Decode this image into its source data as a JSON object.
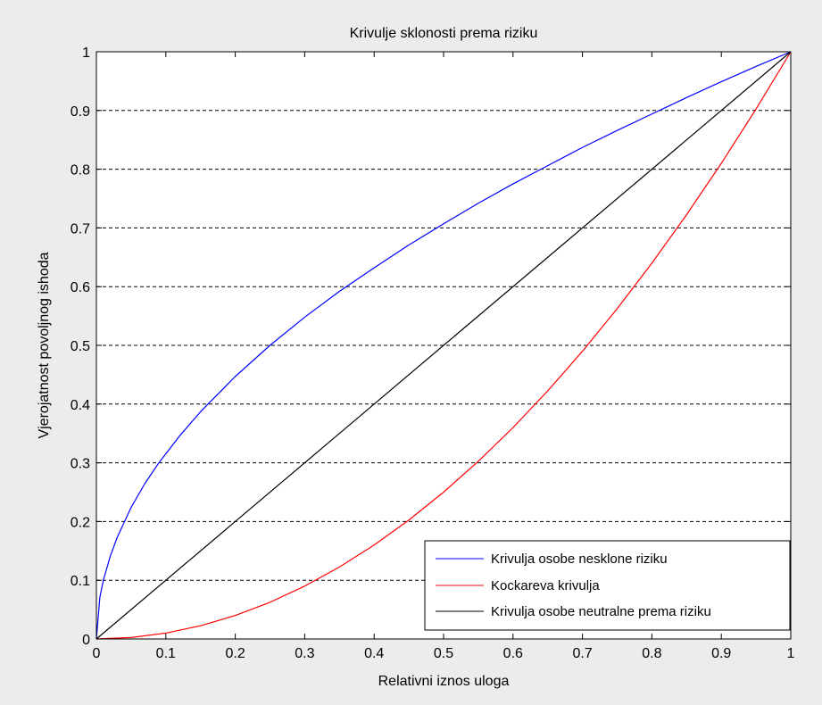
{
  "chart_data": {
    "type": "line",
    "title": "Krivulje sklonosti prema riziku",
    "xlabel": "Relativni iznos uloga",
    "ylabel": "Vjerojatnost povoljnog ishoda",
    "xlim": [
      0,
      1
    ],
    "ylim": [
      0,
      1
    ],
    "xticks": [
      0,
      0.1,
      0.2,
      0.3,
      0.4,
      0.5,
      0.6,
      0.7,
      0.8,
      0.9,
      1
    ],
    "xtick_labels": [
      "0",
      "0.1",
      "0.2",
      "0.3",
      "0.4",
      "0.5",
      "0.6",
      "0.7",
      "0.8",
      "0.9",
      "1"
    ],
    "yticks": [
      0,
      0.1,
      0.2,
      0.3,
      0.4,
      0.5,
      0.6,
      0.7,
      0.8,
      0.9,
      1
    ],
    "ytick_labels": [
      "0",
      "0.1",
      "0.2",
      "0.3",
      "0.4",
      "0.5",
      "0.6",
      "0.7",
      "0.8",
      "0.9",
      "1"
    ],
    "grid": "horizontal dashed",
    "legend_position": "bottom-right",
    "series": [
      {
        "name": "Krivulja osobe nesklone riziku",
        "color": "#0000ff",
        "x": [
          0,
          0.005,
          0.01,
          0.02,
          0.03,
          0.05,
          0.07,
          0.09,
          0.12,
          0.15,
          0.2,
          0.25,
          0.3,
          0.35,
          0.4,
          0.45,
          0.5,
          0.55,
          0.6,
          0.65,
          0.7,
          0.75,
          0.8,
          0.85,
          0.9,
          0.95,
          1
        ],
        "y": [
          0,
          0.071,
          0.1,
          0.141,
          0.173,
          0.224,
          0.265,
          0.3,
          0.346,
          0.387,
          0.447,
          0.5,
          0.548,
          0.592,
          0.632,
          0.671,
          0.707,
          0.742,
          0.775,
          0.806,
          0.837,
          0.866,
          0.894,
          0.922,
          0.949,
          0.975,
          1
        ]
      },
      {
        "name": "Kockareva krivulja",
        "color": "#ff0000",
        "x": [
          0,
          0.05,
          0.1,
          0.15,
          0.2,
          0.25,
          0.3,
          0.35,
          0.4,
          0.45,
          0.5,
          0.55,
          0.6,
          0.65,
          0.7,
          0.75,
          0.8,
          0.85,
          0.9,
          0.95,
          1
        ],
        "y": [
          0,
          0.0025,
          0.01,
          0.0225,
          0.04,
          0.0625,
          0.09,
          0.1225,
          0.16,
          0.2025,
          0.25,
          0.3025,
          0.36,
          0.4225,
          0.49,
          0.5625,
          0.64,
          0.7225,
          0.81,
          0.9025,
          1
        ]
      },
      {
        "name": "Krivulja osobe neutralne prema riziku",
        "color": "#000000",
        "x": [
          0,
          1
        ],
        "y": [
          0,
          1
        ]
      }
    ]
  }
}
